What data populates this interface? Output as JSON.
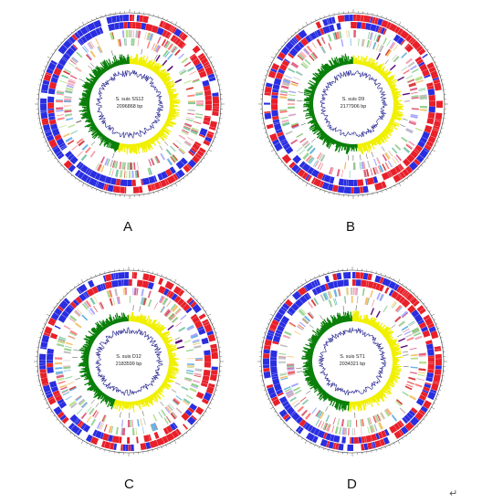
{
  "colors": {
    "forward_cds": "#e8202a",
    "reverse_cds": "#2a2ee0",
    "gc_skew_positive": "#f0f000",
    "gc_skew_negative": "#0a7f0a",
    "gc_content": "#1d1d8c",
    "rna": "#5a0a7a",
    "scale_ring": "#333333",
    "cog_palette": [
      "#e06080",
      "#9fd39a",
      "#6ab4e6",
      "#f2a6b8",
      "#b6e08a",
      "#d94040",
      "#7fc8a9",
      "#f6c26b",
      "#a8a8ff",
      "#c0c0c0",
      "#8fd18a",
      "#ff7f7f"
    ]
  },
  "panels": [
    {
      "id": "A",
      "letter": "A",
      "label_line1": "S. suis SS12",
      "label_line2": "2096868 bp",
      "skew_split_deg": 195,
      "seed": 11
    },
    {
      "id": "B",
      "letter": "B",
      "label_line1": "S. suis D9",
      "label_line2": "2177906 bp",
      "skew_split_deg": 175,
      "seed": 23
    },
    {
      "id": "C",
      "letter": "C",
      "label_line1": "S. suis D12",
      "label_line2": "2183599 bp",
      "skew_split_deg": 200,
      "seed": 37
    },
    {
      "id": "D",
      "letter": "D",
      "label_line1": "S. suis ST1",
      "label_line2": "2034321 bp",
      "skew_split_deg": 185,
      "seed": 51
    }
  ],
  "return_mark": "↵"
}
